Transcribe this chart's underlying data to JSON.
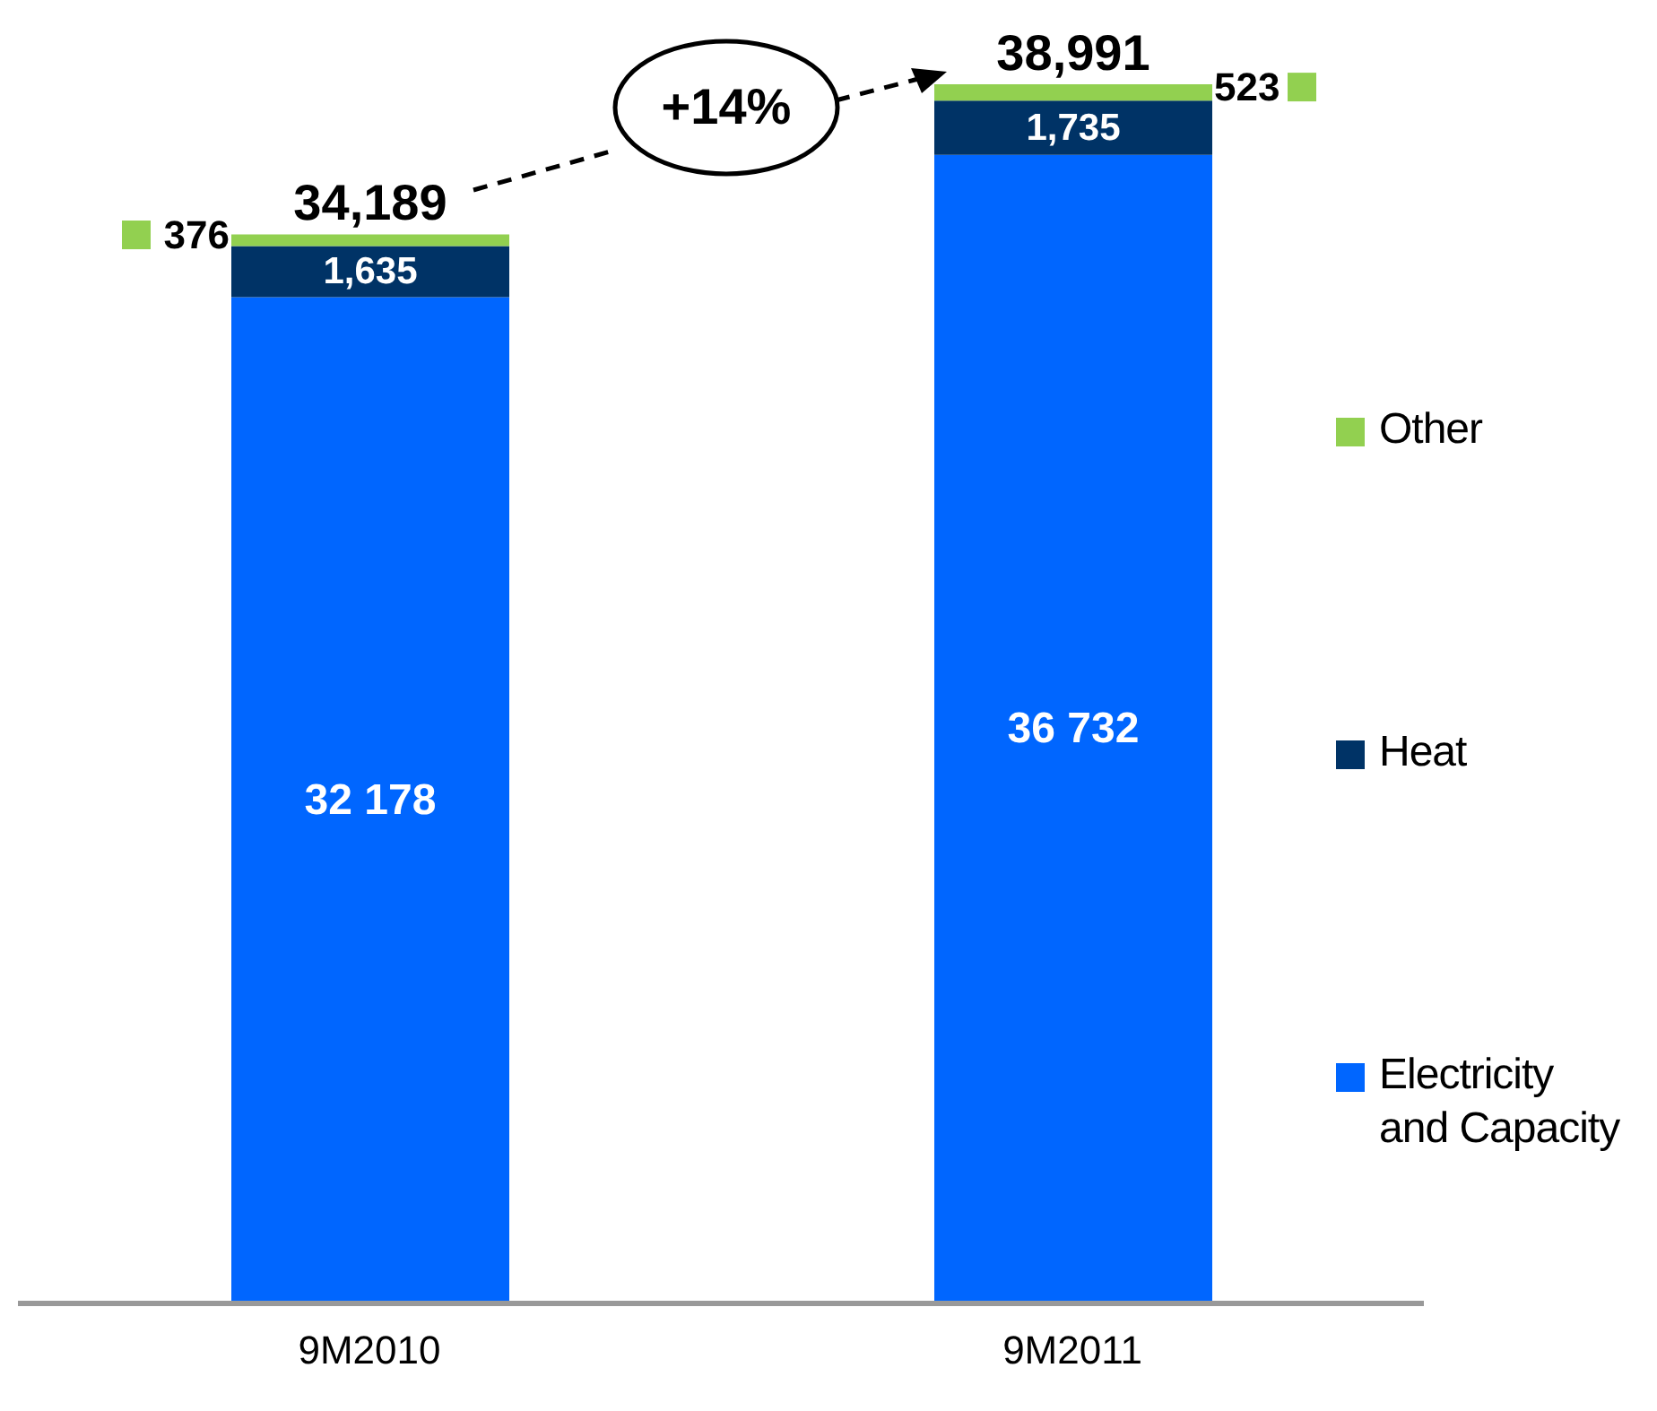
{
  "chart_data": {
    "type": "bar",
    "stacked": true,
    "categories": [
      "9M2010",
      "9M2011"
    ],
    "series": [
      {
        "name": "Electricity and Capacity",
        "color": "#0066ff",
        "values": [
          32178,
          36732
        ],
        "value_labels": [
          "32 178",
          "36 732"
        ]
      },
      {
        "name": "Heat",
        "color": "#003366",
        "values": [
          1635,
          1735
        ],
        "value_labels": [
          "1,635",
          "1,735"
        ]
      },
      {
        "name": "Other",
        "color": "#92d050",
        "values": [
          376,
          523
        ],
        "value_labels": [
          "376",
          "523"
        ]
      }
    ],
    "totals": [
      "34,189",
      "38,991"
    ],
    "annotations": [
      "+14%"
    ],
    "legend": "right"
  }
}
